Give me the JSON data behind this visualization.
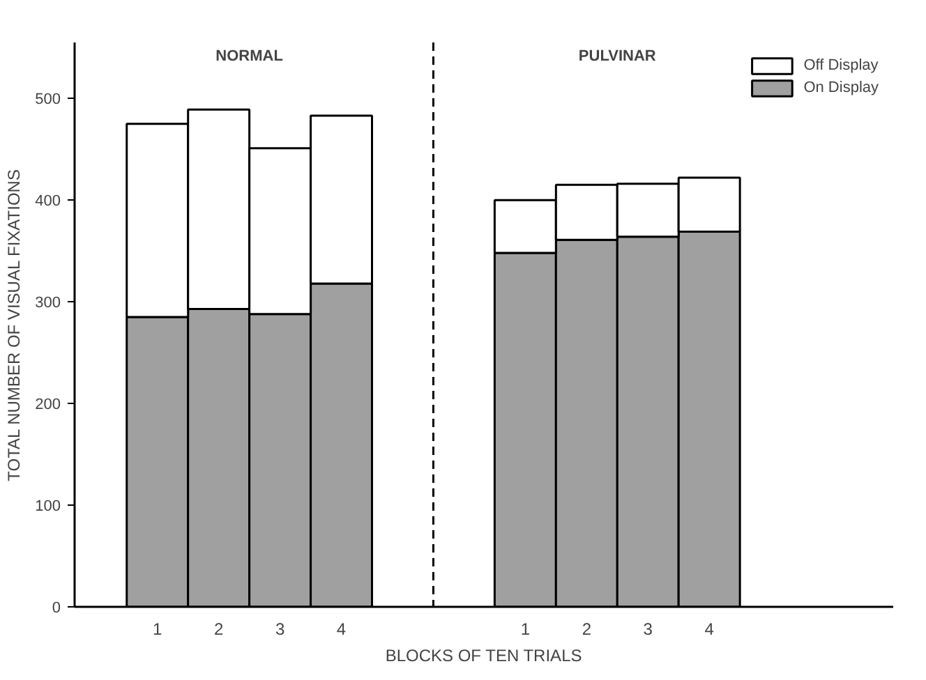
{
  "chart_data": {
    "type": "bar",
    "ylabel": "TOTAL NUMBER OF VISUAL FIXATIONS",
    "xlabel": "BLOCKS OF TEN TRIALS",
    "annotations": [
      "NORMAL",
      "PULVINAR"
    ],
    "categories": [
      "1",
      "2",
      "3",
      "4",
      null,
      null,
      "1",
      "2",
      "3",
      "4"
    ],
    "stacked": true,
    "ylim": [
      0,
      555
    ],
    "yticks": [
      0,
      100,
      200,
      300,
      400,
      500
    ],
    "grid": false,
    "legend": "top right",
    "series": [
      {
        "name": "On Display",
        "color": "#a0a0a0",
        "values": [
          285,
          293,
          288,
          318,
          null,
          null,
          348,
          361,
          364,
          369
        ]
      },
      {
        "name": "Off Display",
        "color": "#ffffff",
        "values": [
          190,
          196,
          163,
          165,
          null,
          null,
          52,
          54,
          52,
          53
        ]
      }
    ]
  }
}
